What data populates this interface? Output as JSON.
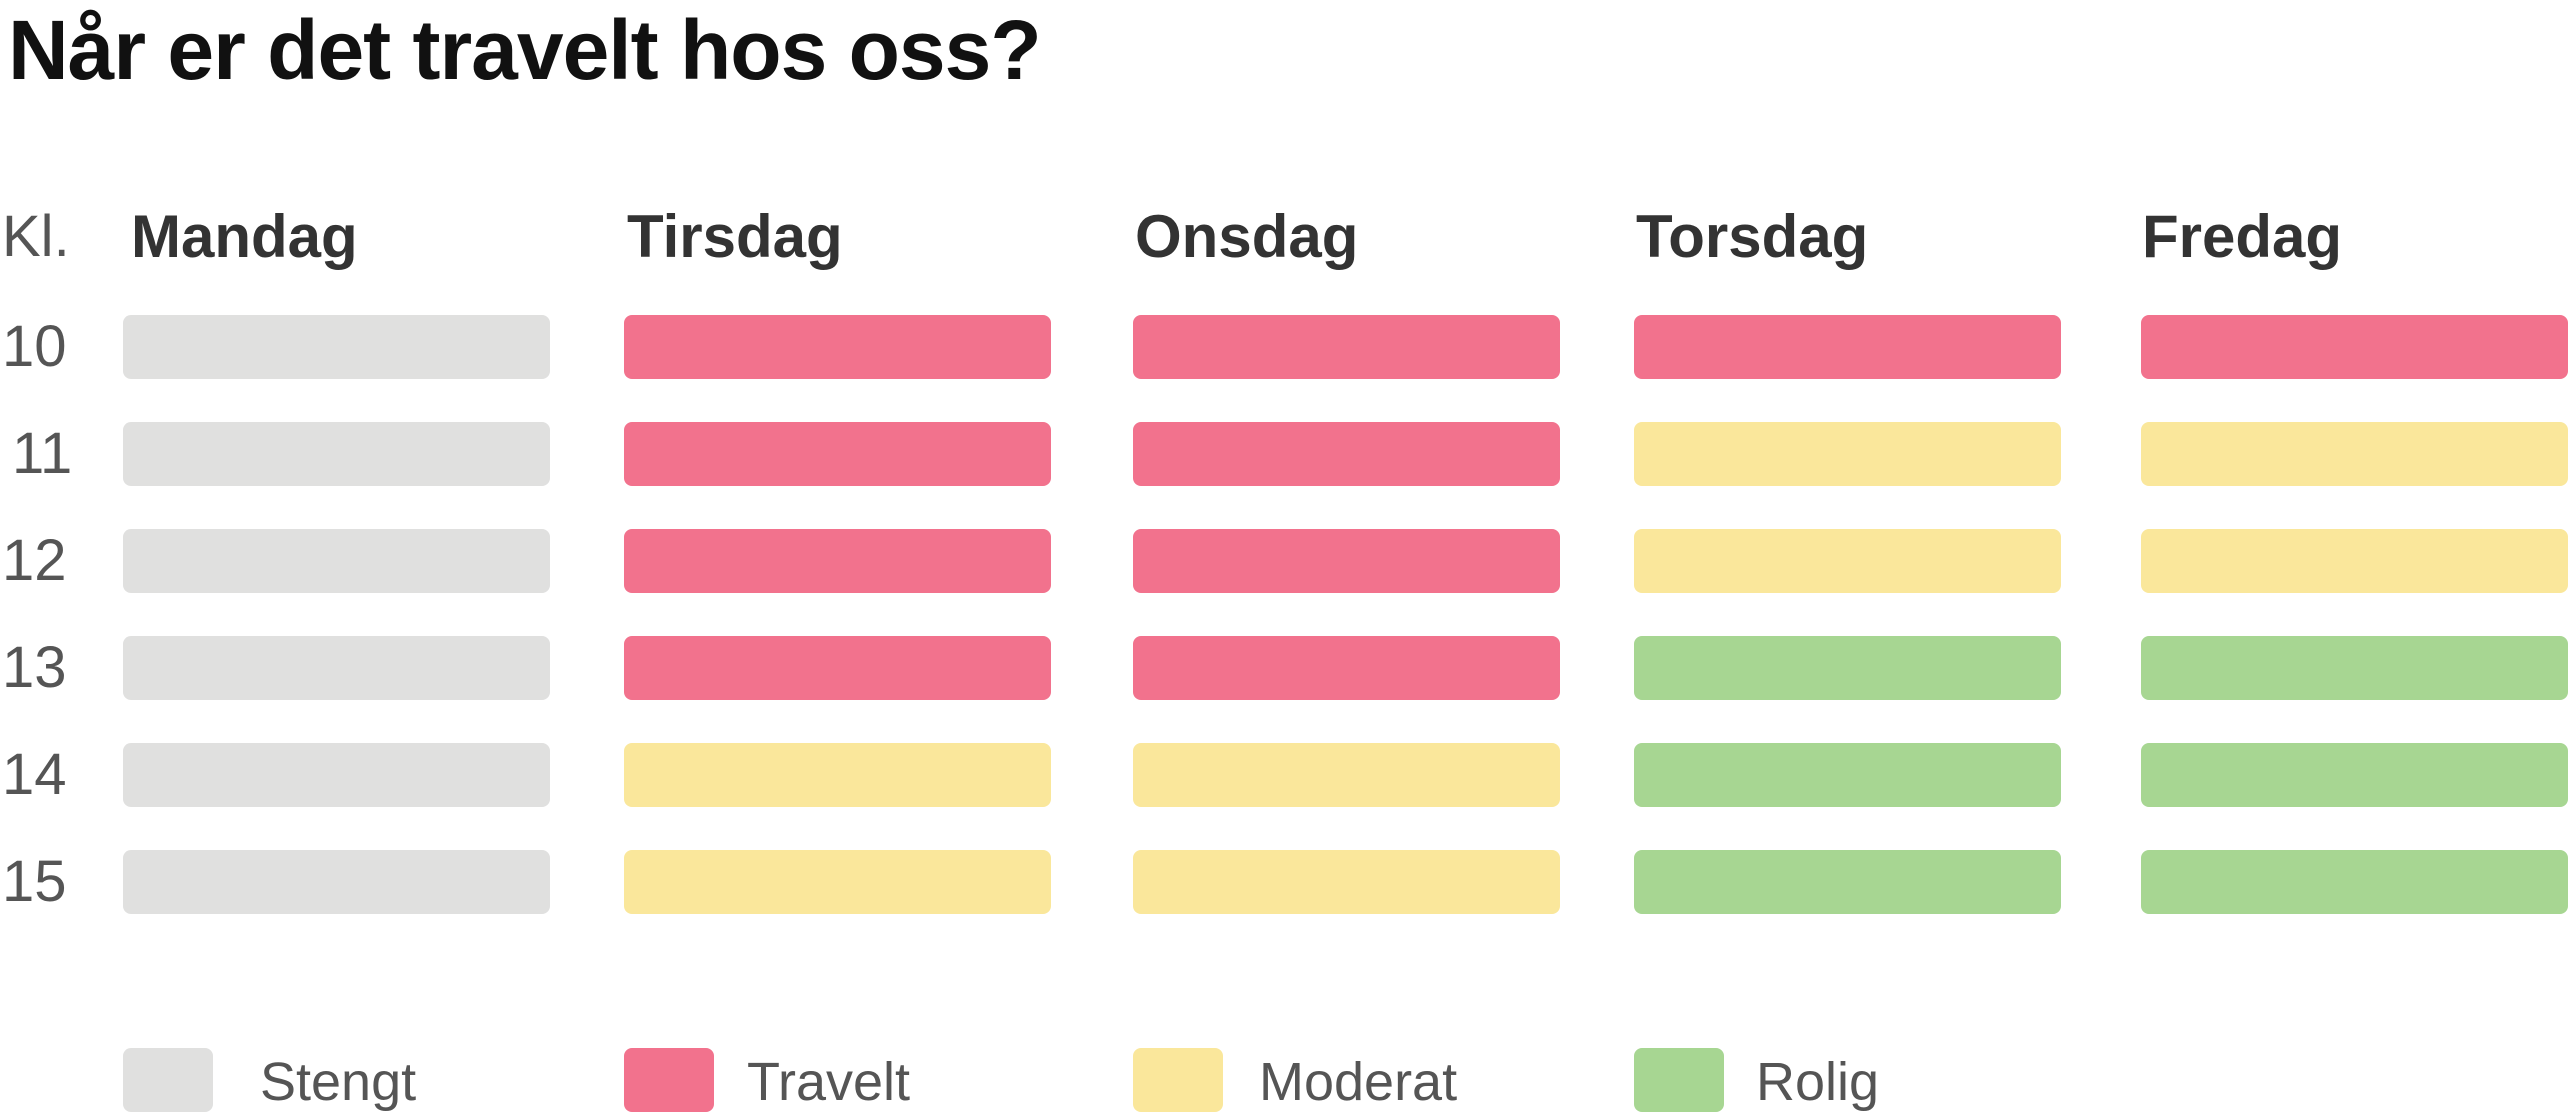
{
  "chart_data": {
    "type": "heatmap",
    "title": "Når er det travelt hos oss?",
    "row_header": "Kl.",
    "columns": [
      "Mandag",
      "Tirsdag",
      "Onsdag",
      "Torsdag",
      "Fredag"
    ],
    "rows": [
      "10",
      "11",
      "12",
      "13",
      "14",
      "15"
    ],
    "categories": [
      {
        "key": "stengt",
        "label": "Stengt",
        "color": "#e0e0df"
      },
      {
        "key": "travelt",
        "label": "Travelt",
        "color": "#f2728d"
      },
      {
        "key": "moderat",
        "label": "Moderat",
        "color": "#fae79b"
      },
      {
        "key": "rolig",
        "label": "Rolig",
        "color": "#a7d692"
      }
    ],
    "cells": [
      [
        "stengt",
        "travelt",
        "travelt",
        "travelt",
        "travelt"
      ],
      [
        "stengt",
        "travelt",
        "travelt",
        "moderat",
        "moderat"
      ],
      [
        "stengt",
        "travelt",
        "travelt",
        "moderat",
        "moderat"
      ],
      [
        "stengt",
        "travelt",
        "travelt",
        "rolig",
        "rolig"
      ],
      [
        "stengt",
        "moderat",
        "moderat",
        "rolig",
        "rolig"
      ],
      [
        "stengt",
        "moderat",
        "moderat",
        "rolig",
        "rolig"
      ]
    ]
  }
}
